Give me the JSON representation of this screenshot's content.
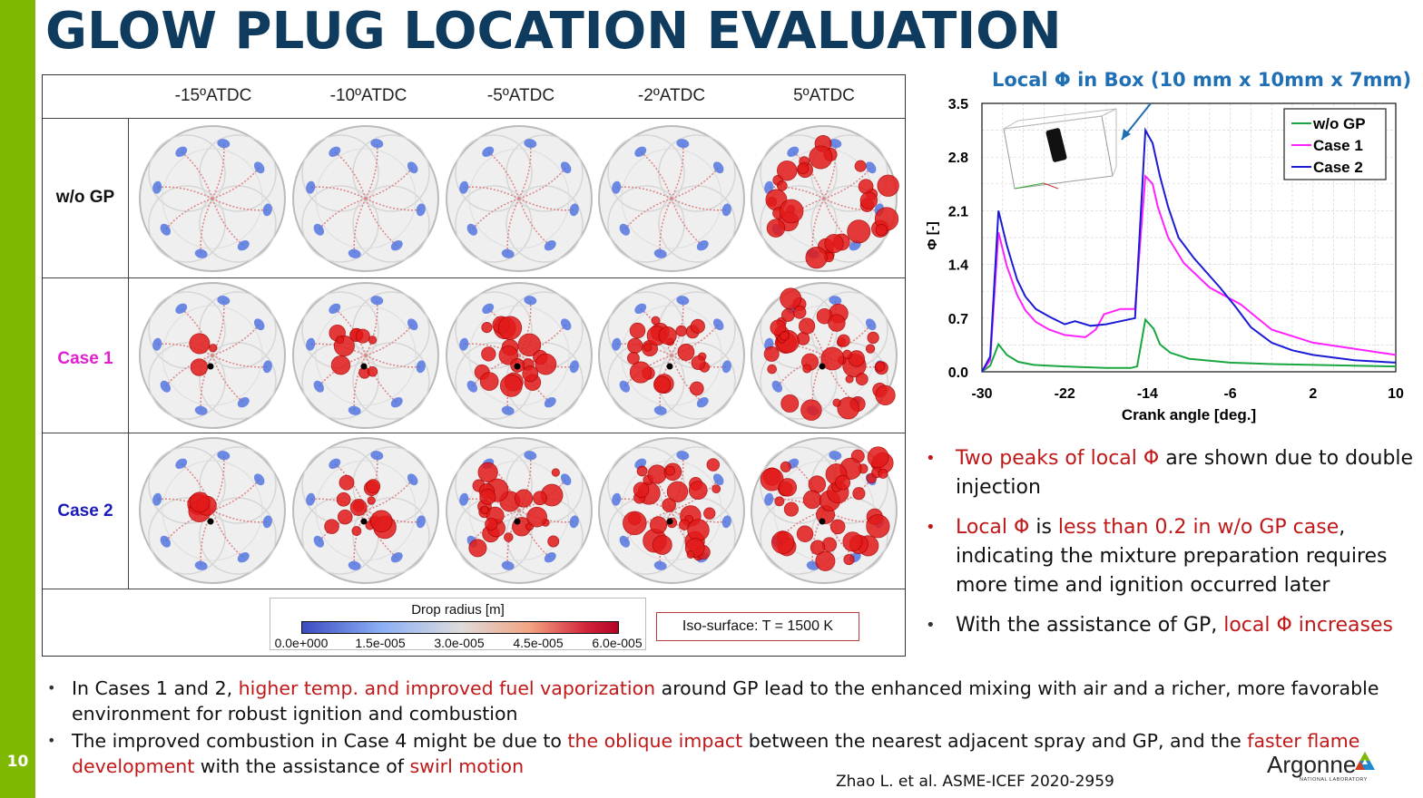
{
  "page_number": "10",
  "title": "GLOW PLUG LOCATION EVALUATION",
  "figure": {
    "columns": [
      "-15ºATDC",
      "-10ºATDC",
      "-5ºATDC",
      "-2ºATDC",
      "5ºATDC"
    ],
    "rows": [
      {
        "label": "w/o GP",
        "color": "#111111"
      },
      {
        "label": "Case 1",
        "color": "#e020d0"
      },
      {
        "label": "Case 2",
        "color": "#1a1ab8"
      }
    ],
    "legend_title": "Drop radius [m]",
    "colorbar_ticks": [
      "0.0e+000",
      "1.5e-005",
      "3.0e-005",
      "4.5e-005",
      "6.0e-005"
    ],
    "iso_surface": "Iso-surface:  T = 1500 K"
  },
  "chart_title": "Local Φ in Box (10 mm x 10mm x 7mm)",
  "chart_data": {
    "type": "line",
    "title": "Local Φ in Box (10 mm x 10mm x 7mm)",
    "xlabel": "Crank angle [deg.]",
    "ylabel": "Φ [-]",
    "xlim": [
      -30,
      10
    ],
    "ylim": [
      0,
      3.5
    ],
    "xticks": [
      "-30",
      "-22",
      "-14",
      "-6",
      "2",
      "10"
    ],
    "yticks": [
      "0.0",
      "0.7",
      "1.4",
      "2.1",
      "2.8",
      "3.5"
    ],
    "grid": true,
    "legend_position": "top-right",
    "series": [
      {
        "name": "w/o GP",
        "color": "#1aa640",
        "x": [
          -30,
          -29.2,
          -28.4,
          -27.6,
          -26.5,
          -25,
          -22,
          -18,
          -15.6,
          -15,
          -14.2,
          -13.4,
          -12.8,
          -11.8,
          -10,
          -6,
          -2,
          2,
          6,
          10
        ],
        "y": [
          0.0,
          0.08,
          0.36,
          0.22,
          0.13,
          0.09,
          0.07,
          0.05,
          0.05,
          0.07,
          0.68,
          0.56,
          0.36,
          0.25,
          0.17,
          0.12,
          0.1,
          0.09,
          0.08,
          0.07
        ]
      },
      {
        "name": "Case 1",
        "color": "#ff22ff",
        "x": [
          -30,
          -29.2,
          -28.4,
          -27.6,
          -26.6,
          -25.8,
          -24.8,
          -23.5,
          -22,
          -20,
          -19,
          -18.2,
          -16.6,
          -15.4,
          -15.2,
          -14.2,
          -13.5,
          -13,
          -12,
          -10.5,
          -8,
          -5,
          -2,
          2,
          6,
          10
        ],
        "y": [
          0.0,
          0.15,
          1.82,
          1.38,
          1.0,
          0.8,
          0.65,
          0.55,
          0.48,
          0.45,
          0.55,
          0.75,
          0.82,
          0.82,
          0.82,
          2.55,
          2.45,
          2.15,
          1.75,
          1.42,
          1.1,
          0.88,
          0.55,
          0.38,
          0.3,
          0.22
        ]
      },
      {
        "name": "Case 2",
        "color": "#1b1bd6",
        "x": [
          -30,
          -29.2,
          -28.4,
          -27.6,
          -26.6,
          -25.8,
          -24.8,
          -23.5,
          -22,
          -21,
          -19.5,
          -18,
          -16.6,
          -15.2,
          -14.2,
          -13.5,
          -12.8,
          -12,
          -11,
          -9.5,
          -7,
          -5.5,
          -4,
          -2,
          0,
          2,
          6,
          10
        ],
        "y": [
          0.0,
          0.2,
          2.1,
          1.65,
          1.2,
          0.98,
          0.82,
          0.72,
          0.62,
          0.66,
          0.6,
          0.62,
          0.66,
          0.7,
          3.15,
          2.98,
          2.55,
          2.15,
          1.75,
          1.48,
          1.1,
          0.85,
          0.58,
          0.38,
          0.28,
          0.22,
          0.15,
          0.12
        ]
      }
    ]
  },
  "right_bullets": {
    "b1_red": "Two peaks of local Φ",
    "b1_rest": " are shown due to double injection",
    "b2_red1": "Local Φ",
    "b2_mid": " is ",
    "b2_red2": "less than 0.2 in w/o GP case",
    "b2_rest": ", indicating the mixture preparation requires more time and ignition occurred later",
    "b3_start": "With the assistance of GP, ",
    "b3_red": "local Φ increases"
  },
  "bottom_bullets": {
    "b1_start": "In Cases 1 and 2, ",
    "b1_red": "higher temp. and improved fuel vaporization",
    "b1_rest": " around GP lead to the enhanced mixing with air and a richer, more favorable environment for robust ignition and combustion",
    "b2_start": "The improved combustion in Case 4 might be due to ",
    "b2_red1": "the oblique impact",
    "b2_mid": " between the nearest adjacent spray and GP, and the ",
    "b2_red2": "faster flame development",
    "b2_mid2": " with the assistance of ",
    "b2_red3": "swirl motion"
  },
  "citation": "Zhao L.  et al. ASME-ICEF 2020-2959",
  "logo": {
    "name": "Argonne",
    "sub": "NATIONAL LABORATORY"
  }
}
